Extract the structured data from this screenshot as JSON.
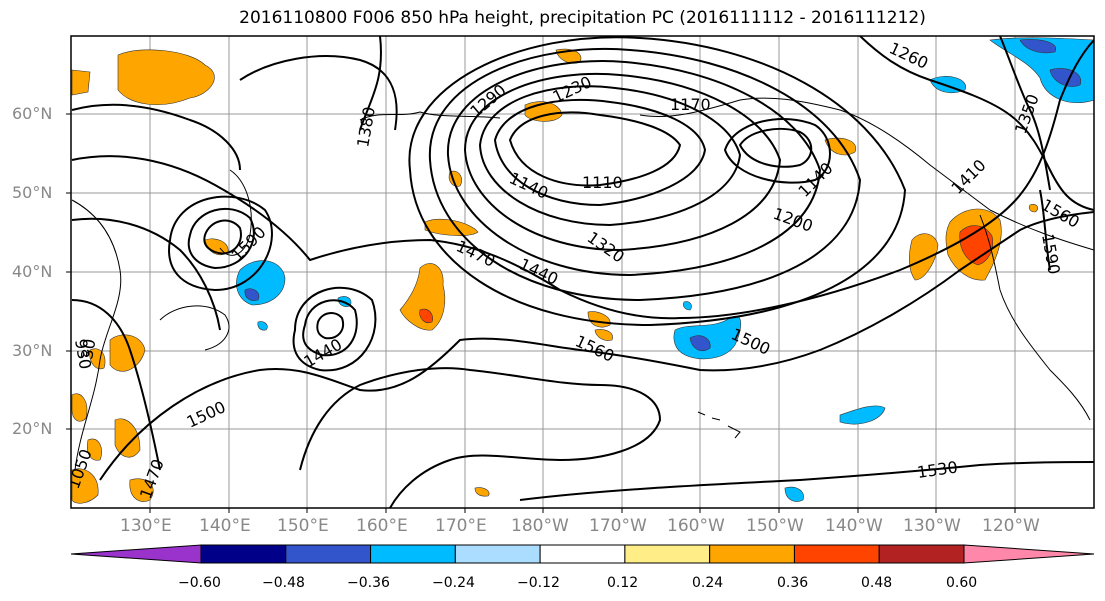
{
  "title": "2016110800 F006 850 hPa height, precipitation PC (2016111112 - 2016111212)",
  "lat_labels": [
    "60°N",
    "50°N",
    "40°N",
    "30°N",
    "20°N"
  ],
  "lon_labels": [
    "130°E",
    "140°E",
    "150°E",
    "160°E",
    "170°E",
    "180°W",
    "170°W",
    "160°W",
    "150°W",
    "140°W",
    "130°W",
    "120°W"
  ],
  "contour_labels": [
    "1380",
    "1290",
    "1230",
    "1170",
    "1260",
    "1350",
    "1140",
    "1110",
    "1140",
    "1200",
    "1410",
    "1560",
    "1590",
    "1320",
    "1470",
    "1440",
    "1500",
    "1560",
    "1440",
    "1500",
    "1530",
    "1590",
    "30",
    "930",
    "1050",
    "1470"
  ],
  "colorbar": {
    "colors": [
      "#9933cc",
      "#000088",
      "#3355cc",
      "#00bbff",
      "#aaddff",
      "#ffffff",
      "#ffee88",
      "#ffa500",
      "#ff4400",
      "#b22222",
      "#ff88aa"
    ],
    "tick_labels": [
      "−0.60",
      "−0.48",
      "−0.36",
      "−0.24",
      "−0.12",
      "0.12",
      "0.24",
      "0.36",
      "0.48",
      "0.60"
    ]
  }
}
